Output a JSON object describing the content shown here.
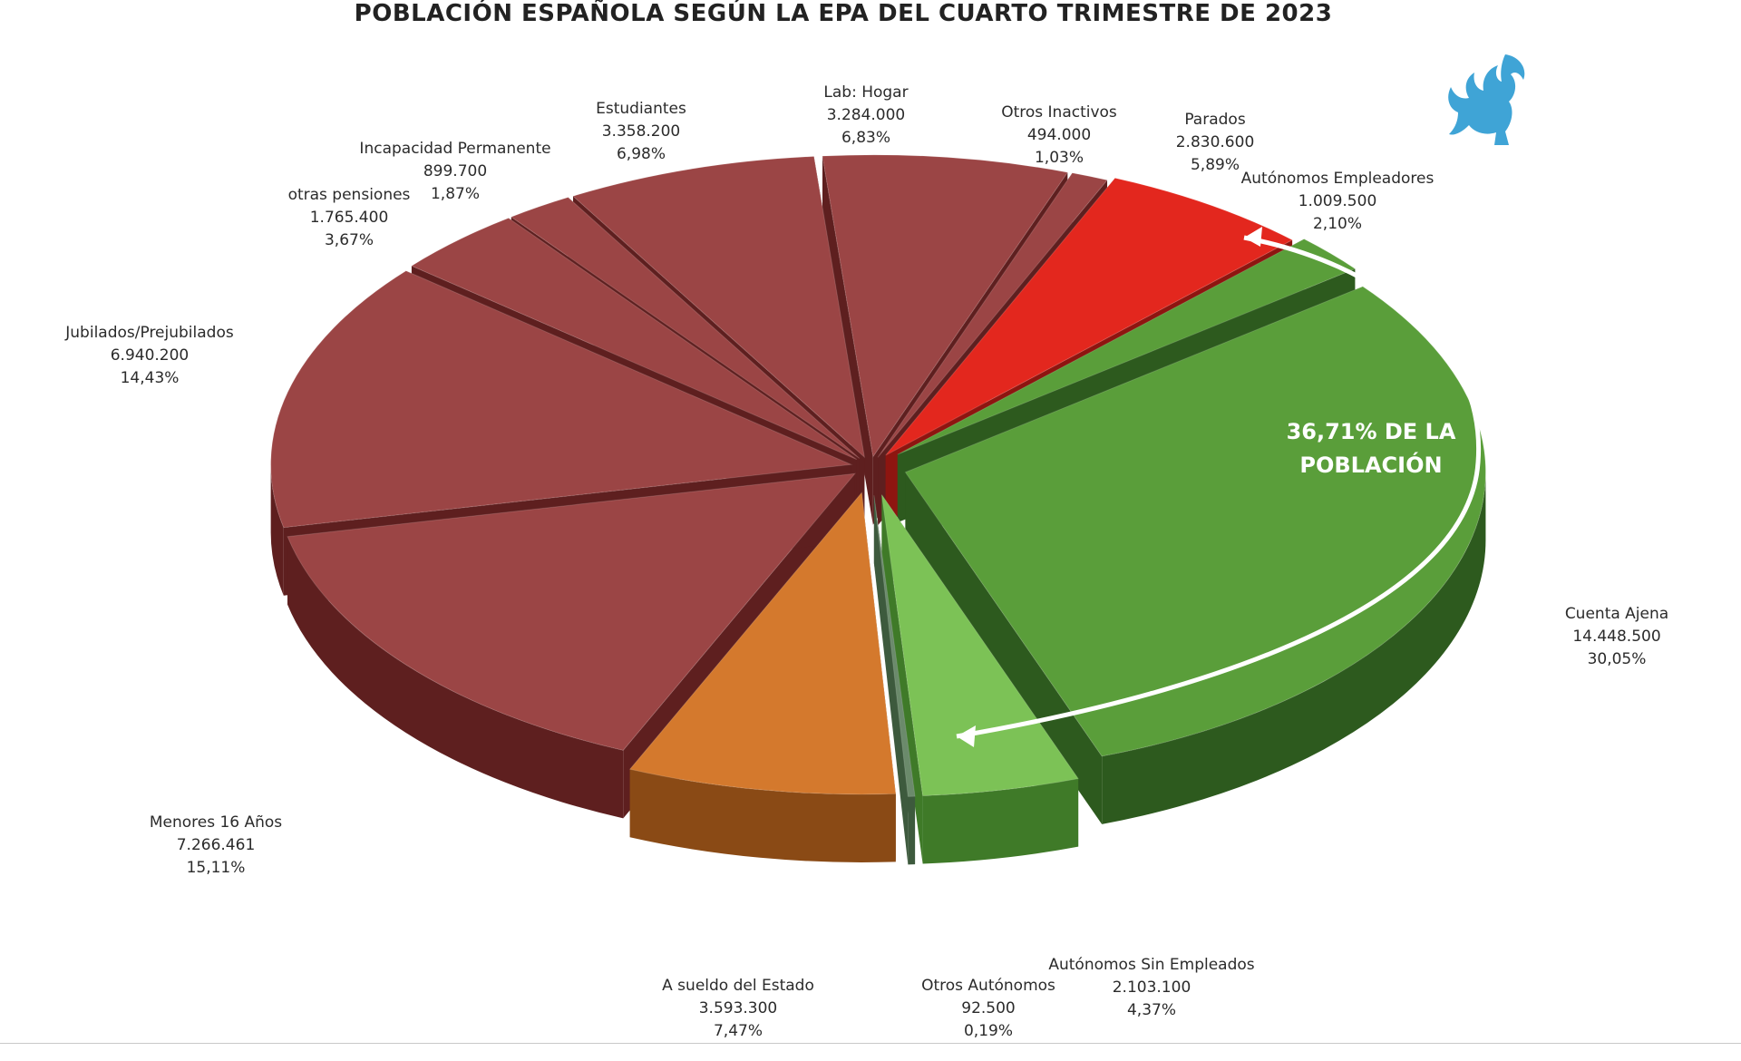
{
  "colors": {
    "inactive_top": "#9b4545",
    "inactive_side": "#5e1f1f",
    "parados_top": "#e3271e",
    "parados_side": "#8e1510",
    "employed_top": "#5a9e3a",
    "employed_side": "#2d5a1e",
    "estado_top": "#d4792d",
    "estado_side": "#8a4a15",
    "callout": "#ffffff",
    "logo": "#3fa4d6"
  },
  "logo_icon": "griffin-icon",
  "chart_data": {
    "type": "pie",
    "title": "POBLACIÓN ESPAÑOLA SEGÚN LA EPA DEL CUARTO TRIMESTRE DE 2023",
    "style": "3d-exploded",
    "slices": [
      {
        "label": "Lab: Hogar",
        "value_text": "3.284.000",
        "value": 3284000,
        "percent_text": "6,83%",
        "percent": 6.83,
        "group": "inactive"
      },
      {
        "label": "Otros Inactivos",
        "value_text": "494.000",
        "value": 494000,
        "percent_text": "1,03%",
        "percent": 1.03,
        "group": "inactive"
      },
      {
        "label": "Parados",
        "value_text": "2.830.600",
        "value": 2830600,
        "percent_text": "5,89%",
        "percent": 5.89,
        "group": "parados"
      },
      {
        "label": "Autónomos Empleadores",
        "value_text": "1.009.500",
        "value": 1009500,
        "percent_text": "2,10%",
        "percent": 2.1,
        "group": "employed"
      },
      {
        "label": "Cuenta Ajena",
        "value_text": "14.448.500",
        "value": 14448500,
        "percent_text": "30,05%",
        "percent": 30.05,
        "group": "employed"
      },
      {
        "label": "Autónomos Sin Empleados",
        "value_text": "2.103.100",
        "value": 2103100,
        "percent_text": "4,37%",
        "percent": 4.37,
        "group": "employed_light"
      },
      {
        "label": "Otros Autónomos",
        "value_text": "92.500",
        "value": 92500,
        "percent_text": "0,19%",
        "percent": 0.19,
        "group": "other_auto"
      },
      {
        "label": "A sueldo del Estado",
        "value_text": "3.593.300",
        "value": 3593300,
        "percent_text": "7,47%",
        "percent": 7.47,
        "group": "estado"
      },
      {
        "label": "Menores 16 Años",
        "value_text": "7.266.461",
        "value": 7266461,
        "percent_text": "15,11%",
        "percent": 15.11,
        "group": "inactive"
      },
      {
        "label": "Jubilados/Prejubilados",
        "value_text": "6.940.200",
        "value": 6940200,
        "percent_text": "14,43%",
        "percent": 14.43,
        "group": "inactive"
      },
      {
        "label": "otras pensiones",
        "value_text": "1.765.400",
        "value": 1765400,
        "percent_text": "3,67%",
        "percent": 3.67,
        "group": "inactive"
      },
      {
        "label": "Incapacidad Permanente",
        "value_text": "899.700",
        "value": 899700,
        "percent_text": "1,87%",
        "percent": 1.87,
        "group": "inactive"
      },
      {
        "label": "Estudiantes",
        "value_text": "3.358.200",
        "value": 3358200,
        "percent_text": "6,98%",
        "percent": 6.98,
        "group": "inactive"
      }
    ],
    "annotation": {
      "line1": "36,71% DE LA",
      "line2": "POBLACIÓN",
      "percent": 36.71
    }
  }
}
